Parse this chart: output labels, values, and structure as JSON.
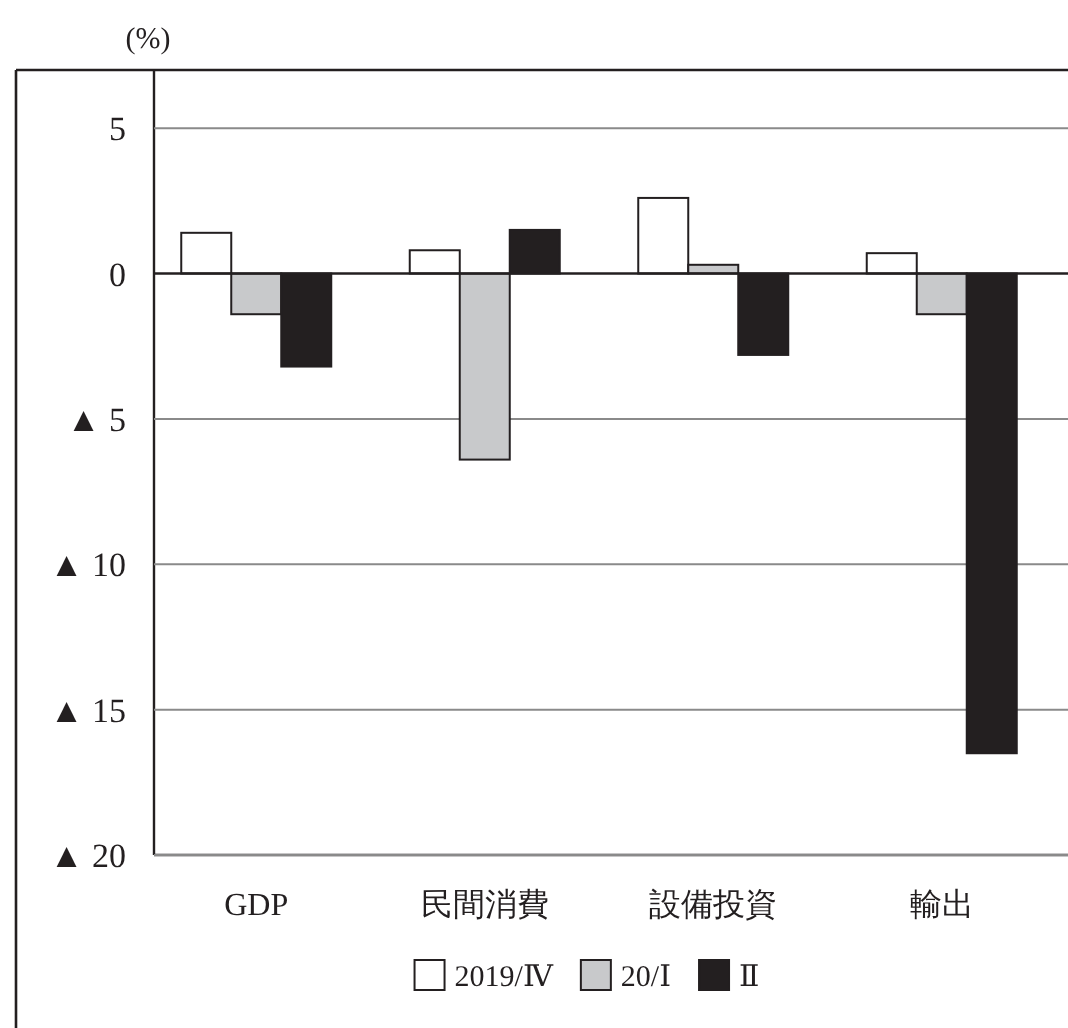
{
  "chart_data": {
    "type": "bar",
    "ylabel": "(%)",
    "categories": [
      "GDP",
      "民間消費",
      "設備投資",
      "輸出"
    ],
    "series": [
      {
        "name": "2019/Ⅳ",
        "color": "#ffffff",
        "values": [
          1.4,
          0.8,
          2.6,
          0.7
        ]
      },
      {
        "name": "20/Ⅰ",
        "color": "#c8c9cb",
        "values": [
          -1.4,
          -6.4,
          0.3,
          -1.4
        ]
      },
      {
        "name": "Ⅱ",
        "color": "#231f20",
        "values": [
          -3.2,
          1.5,
          -2.8,
          -16.5
        ]
      }
    ],
    "ylim": [
      -20,
      7
    ],
    "yticks": [
      {
        "value": -20,
        "label": "▲ 20"
      },
      {
        "value": -15,
        "label": "▲ 15"
      },
      {
        "value": -10,
        "label": "▲ 10"
      },
      {
        "value": -5,
        "label": "▲ 5"
      },
      0,
      5
    ],
    "grid": "y",
    "legend": "bottom"
  }
}
